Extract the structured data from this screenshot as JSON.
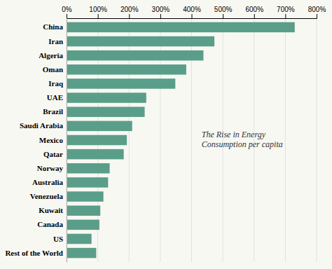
{
  "chart_data": {
    "type": "bar",
    "orientation": "horizontal",
    "categories": [
      "Rest of the World",
      "US",
      "Canada",
      "Kuwait",
      "Venezuela",
      "Australia",
      "Norway",
      "Qatar",
      "Mexico",
      "Saudi Arabia",
      "Brazil",
      "UAE",
      "Iraq",
      "Oman",
      "Algeria",
      "Iran",
      "China"
    ],
    "values": [
      95,
      80,
      105,
      108,
      118,
      133,
      138,
      183,
      193,
      210,
      250,
      255,
      348,
      383,
      438,
      473,
      730
    ],
    "color": "#5a9e8a",
    "xlim": [
      0,
      800
    ],
    "xticks": [
      {
        "value": 0,
        "label": "0%"
      },
      {
        "value": 100,
        "label": "100%"
      },
      {
        "value": 200,
        "label": "200%"
      },
      {
        "value": 300,
        "label": "300%"
      },
      {
        "value": 400,
        "label": "400%"
      },
      {
        "value": 500,
        "label": "500%"
      },
      {
        "value": 600,
        "label": "600%"
      },
      {
        "value": 700,
        "label": "700%"
      },
      {
        "value": 800,
        "label": "800%"
      }
    ],
    "grid": true,
    "annotations": [
      "The Rise in Energy",
      "Consumption per capita"
    ]
  }
}
